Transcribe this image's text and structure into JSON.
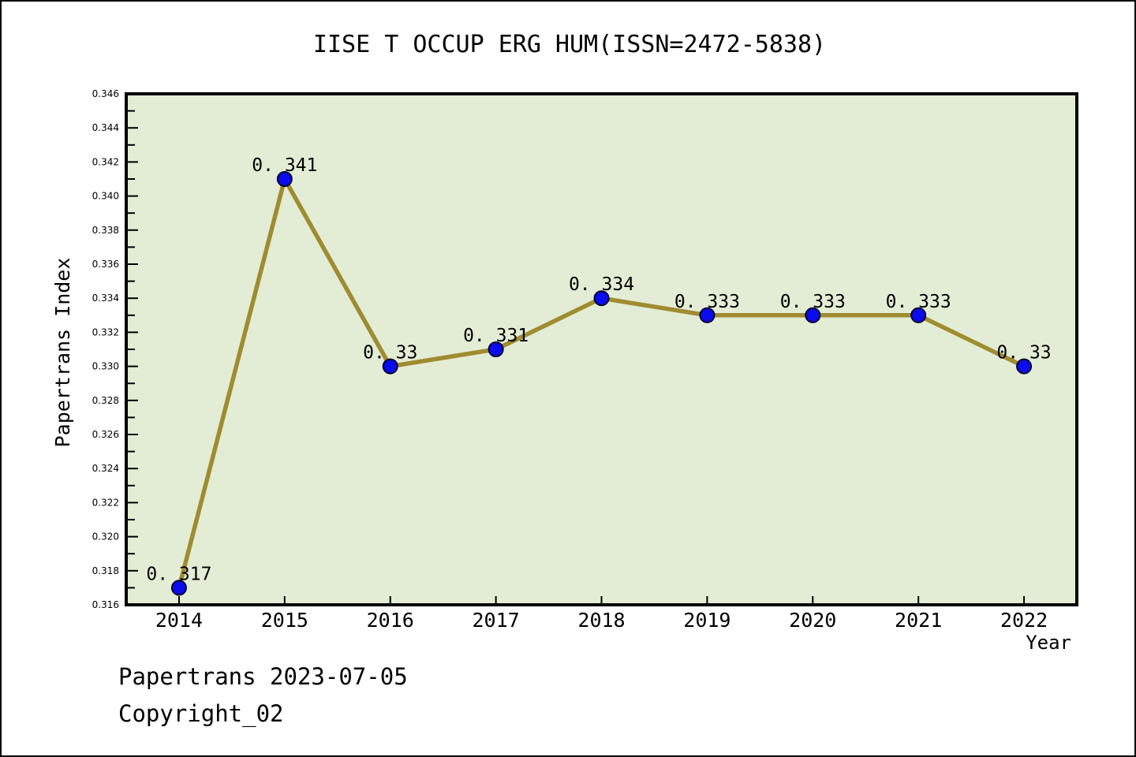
{
  "chart_data": {
    "type": "line",
    "title": "IISE T OCCUP ERG HUM(ISSN=2472-5838)",
    "xlabel": "Year",
    "ylabel": "Papertrans Index",
    "x": [
      2014,
      2015,
      2016,
      2017,
      2018,
      2019,
      2020,
      2021,
      2022
    ],
    "values": [
      0.317,
      0.341,
      0.33,
      0.331,
      0.334,
      0.333,
      0.333,
      0.333,
      0.33
    ],
    "point_labels": [
      "0. 317",
      "0. 341",
      "0. 33",
      "0. 331",
      "0. 334",
      "0. 333",
      "0. 333",
      "0. 333",
      "0. 33"
    ],
    "ylim": [
      0.316,
      0.346
    ],
    "ytick_major_step": 0.002,
    "ytick_minor_step": 0.001,
    "ytick_decimals": 3,
    "grid": false,
    "legend_position": "none",
    "colors": {
      "plot_bg": "#e3edd5",
      "line": "#a08c30",
      "marker_fill": "#0b0bee",
      "marker_edge": "#000030",
      "axis": "#000000",
      "text": "#000000"
    }
  },
  "footer": {
    "line1": "Papertrans 2023-07-05",
    "line2": "Copyright_02"
  }
}
